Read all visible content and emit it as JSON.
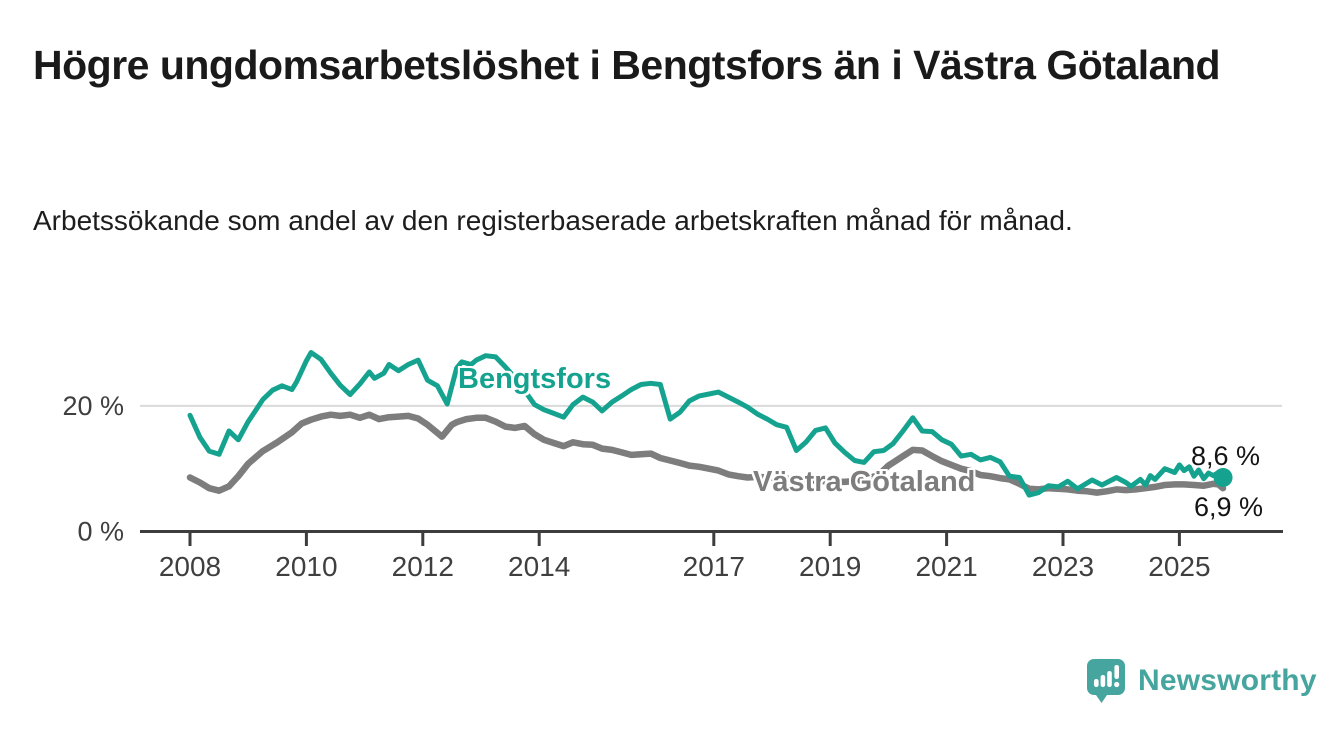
{
  "header": {
    "title": "Högre ungdomsarbetslöshet i Bengtsfors än i Västra Götaland",
    "subtitle": "Arbetssökande som andel av den registerbaserade arbetskraften månad för månad."
  },
  "chart_data": {
    "type": "line",
    "unit": "%",
    "x_range": [
      2008.0,
      2025.75
    ],
    "y_axis": {
      "ticks": [
        {
          "value": 20,
          "label": "20 %"
        },
        {
          "value": 0,
          "label": "0 %"
        }
      ],
      "gridline_at": 20
    },
    "x_ticks": [
      {
        "value": 2008,
        "label": "2008"
      },
      {
        "value": 2010,
        "label": "2010"
      },
      {
        "value": 2012,
        "label": "2012"
      },
      {
        "value": 2014,
        "label": "2014"
      },
      {
        "value": 2017,
        "label": "2017"
      },
      {
        "value": 2019,
        "label": "2019"
      },
      {
        "value": 2021,
        "label": "2021"
      },
      {
        "value": 2023,
        "label": "2023"
      },
      {
        "value": 2025,
        "label": "2025"
      }
    ],
    "legend_position": "inline-labels-on-lines",
    "series": [
      {
        "name": "Bengtsfors",
        "color": "#15A390",
        "end_dot": true,
        "latest_value_label": "8,6 %",
        "points": [
          [
            2008.0,
            18.5
          ],
          [
            2008.17,
            15.0
          ],
          [
            2008.33,
            12.8
          ],
          [
            2008.5,
            12.3
          ],
          [
            2008.67,
            16.0
          ],
          [
            2008.83,
            14.6
          ],
          [
            2009.0,
            17.5
          ],
          [
            2009.25,
            21.0
          ],
          [
            2009.42,
            22.5
          ],
          [
            2009.58,
            23.2
          ],
          [
            2009.75,
            22.6
          ],
          [
            2009.83,
            23.8
          ],
          [
            2010.0,
            27.2
          ],
          [
            2010.08,
            28.5
          ],
          [
            2010.25,
            27.4
          ],
          [
            2010.42,
            25.2
          ],
          [
            2010.58,
            23.3
          ],
          [
            2010.75,
            21.8
          ],
          [
            2010.92,
            23.5
          ],
          [
            2011.08,
            25.4
          ],
          [
            2011.17,
            24.4
          ],
          [
            2011.33,
            25.2
          ],
          [
            2011.42,
            26.6
          ],
          [
            2011.58,
            25.6
          ],
          [
            2011.75,
            26.6
          ],
          [
            2011.92,
            27.3
          ],
          [
            2012.08,
            24.1
          ],
          [
            2012.25,
            23.2
          ],
          [
            2012.42,
            20.3
          ],
          [
            2012.58,
            26.0
          ],
          [
            2012.67,
            27.0
          ],
          [
            2012.83,
            26.6
          ],
          [
            2012.92,
            27.3
          ],
          [
            2013.08,
            28.0
          ],
          [
            2013.25,
            27.8
          ],
          [
            2013.42,
            26.2
          ],
          [
            2013.58,
            24.5
          ],
          [
            2013.75,
            22.4
          ],
          [
            2013.92,
            20.2
          ],
          [
            2014.08,
            19.4
          ],
          [
            2014.25,
            18.8
          ],
          [
            2014.42,
            18.2
          ],
          [
            2014.58,
            20.2
          ],
          [
            2014.75,
            21.4
          ],
          [
            2014.92,
            20.6
          ],
          [
            2015.08,
            19.2
          ],
          [
            2015.25,
            20.6
          ],
          [
            2015.42,
            21.6
          ],
          [
            2015.58,
            22.6
          ],
          [
            2015.75,
            23.4
          ],
          [
            2015.92,
            23.6
          ],
          [
            2016.08,
            23.4
          ],
          [
            2016.25,
            17.9
          ],
          [
            2016.42,
            19.0
          ],
          [
            2016.58,
            20.8
          ],
          [
            2016.75,
            21.6
          ],
          [
            2016.92,
            21.9
          ],
          [
            2017.08,
            22.2
          ],
          [
            2017.25,
            21.4
          ],
          [
            2017.42,
            20.6
          ],
          [
            2017.58,
            19.8
          ],
          [
            2017.75,
            18.7
          ],
          [
            2017.92,
            17.9
          ],
          [
            2018.08,
            17.0
          ],
          [
            2018.25,
            16.6
          ],
          [
            2018.42,
            12.9
          ],
          [
            2018.58,
            14.2
          ],
          [
            2018.75,
            16.1
          ],
          [
            2018.92,
            16.5
          ],
          [
            2019.08,
            14.1
          ],
          [
            2019.25,
            12.6
          ],
          [
            2019.42,
            11.3
          ],
          [
            2019.58,
            11.0
          ],
          [
            2019.75,
            12.7
          ],
          [
            2019.92,
            12.9
          ],
          [
            2020.08,
            14.0
          ],
          [
            2020.25,
            16.0
          ],
          [
            2020.42,
            18.1
          ],
          [
            2020.58,
            16.0
          ],
          [
            2020.75,
            15.9
          ],
          [
            2020.92,
            14.6
          ],
          [
            2021.08,
            13.9
          ],
          [
            2021.25,
            12.0
          ],
          [
            2021.42,
            12.3
          ],
          [
            2021.58,
            11.4
          ],
          [
            2021.75,
            11.8
          ],
          [
            2021.92,
            11.1
          ],
          [
            2022.08,
            8.8
          ],
          [
            2022.25,
            8.6
          ],
          [
            2022.42,
            5.8
          ],
          [
            2022.58,
            6.2
          ],
          [
            2022.75,
            7.3
          ],
          [
            2022.92,
            7.1
          ],
          [
            2023.08,
            8.0
          ],
          [
            2023.25,
            6.8
          ],
          [
            2023.5,
            8.2
          ],
          [
            2023.67,
            7.4
          ],
          [
            2023.92,
            8.6
          ],
          [
            2024.08,
            7.8
          ],
          [
            2024.17,
            7.2
          ],
          [
            2024.33,
            8.3
          ],
          [
            2024.42,
            7.4
          ],
          [
            2024.5,
            8.9
          ],
          [
            2024.58,
            8.3
          ],
          [
            2024.75,
            10.0
          ],
          [
            2024.92,
            9.4
          ],
          [
            2025.0,
            10.6
          ],
          [
            2025.08,
            9.7
          ],
          [
            2025.17,
            10.3
          ],
          [
            2025.25,
            8.8
          ],
          [
            2025.33,
            9.8
          ],
          [
            2025.42,
            8.4
          ],
          [
            2025.5,
            9.3
          ],
          [
            2025.58,
            8.9
          ],
          [
            2025.67,
            9.4
          ],
          [
            2025.75,
            8.6
          ]
        ]
      },
      {
        "name": "Västra Götaland",
        "color": "#7D7D7D",
        "end_dot": false,
        "latest_value_label": "6,9 %",
        "points": [
          [
            2008.0,
            8.6
          ],
          [
            2008.17,
            7.8
          ],
          [
            2008.33,
            6.9
          ],
          [
            2008.5,
            6.5
          ],
          [
            2008.67,
            7.2
          ],
          [
            2008.83,
            8.8
          ],
          [
            2009.0,
            10.8
          ],
          [
            2009.25,
            12.8
          ],
          [
            2009.5,
            14.2
          ],
          [
            2009.75,
            15.8
          ],
          [
            2009.92,
            17.2
          ],
          [
            2010.08,
            17.8
          ],
          [
            2010.25,
            18.3
          ],
          [
            2010.42,
            18.6
          ],
          [
            2010.58,
            18.4
          ],
          [
            2010.75,
            18.6
          ],
          [
            2010.92,
            18.1
          ],
          [
            2011.08,
            18.6
          ],
          [
            2011.25,
            17.9
          ],
          [
            2011.42,
            18.2
          ],
          [
            2011.58,
            18.3
          ],
          [
            2011.75,
            18.4
          ],
          [
            2011.92,
            18.0
          ],
          [
            2012.08,
            17.0
          ],
          [
            2012.25,
            15.7
          ],
          [
            2012.33,
            15.1
          ],
          [
            2012.5,
            17.0
          ],
          [
            2012.58,
            17.4
          ],
          [
            2012.75,
            17.9
          ],
          [
            2012.92,
            18.1
          ],
          [
            2013.08,
            18.1
          ],
          [
            2013.25,
            17.5
          ],
          [
            2013.42,
            16.7
          ],
          [
            2013.58,
            16.5
          ],
          [
            2013.75,
            16.8
          ],
          [
            2013.92,
            15.5
          ],
          [
            2014.08,
            14.6
          ],
          [
            2014.25,
            14.1
          ],
          [
            2014.42,
            13.6
          ],
          [
            2014.58,
            14.2
          ],
          [
            2014.75,
            13.9
          ],
          [
            2014.92,
            13.8
          ],
          [
            2015.08,
            13.2
          ],
          [
            2015.25,
            13.0
          ],
          [
            2015.42,
            12.6
          ],
          [
            2015.58,
            12.2
          ],
          [
            2015.75,
            12.3
          ],
          [
            2015.92,
            12.4
          ],
          [
            2016.08,
            11.7
          ],
          [
            2016.25,
            11.3
          ],
          [
            2016.42,
            10.9
          ],
          [
            2016.58,
            10.5
          ],
          [
            2016.75,
            10.3
          ],
          [
            2016.92,
            10.0
          ],
          [
            2017.08,
            9.7
          ],
          [
            2017.25,
            9.1
          ],
          [
            2017.42,
            8.8
          ],
          [
            2017.58,
            8.6
          ],
          [
            2017.75,
            8.7
          ],
          [
            2017.92,
            8.6
          ],
          [
            2018.25,
            8.4
          ],
          [
            2018.58,
            8.2
          ],
          [
            2018.92,
            8.0
          ],
          [
            2019.25,
            7.9
          ],
          [
            2019.58,
            8.2
          ],
          [
            2019.83,
            9.0
          ],
          [
            2020.0,
            10.5
          ],
          [
            2020.25,
            12.0
          ],
          [
            2020.42,
            13.0
          ],
          [
            2020.58,
            12.9
          ],
          [
            2020.75,
            12.0
          ],
          [
            2020.92,
            11.2
          ],
          [
            2021.08,
            10.6
          ],
          [
            2021.25,
            10.0
          ],
          [
            2021.42,
            9.6
          ],
          [
            2021.58,
            9.0
          ],
          [
            2021.75,
            8.8
          ],
          [
            2021.92,
            8.5
          ],
          [
            2022.08,
            8.3
          ],
          [
            2022.25,
            7.6
          ],
          [
            2022.42,
            6.8
          ],
          [
            2022.58,
            6.7
          ],
          [
            2022.75,
            6.9
          ],
          [
            2022.92,
            6.8
          ],
          [
            2023.08,
            6.7
          ],
          [
            2023.25,
            6.5
          ],
          [
            2023.42,
            6.4
          ],
          [
            2023.58,
            6.2
          ],
          [
            2023.75,
            6.4
          ],
          [
            2023.92,
            6.7
          ],
          [
            2024.08,
            6.6
          ],
          [
            2024.25,
            6.7
          ],
          [
            2024.42,
            6.9
          ],
          [
            2024.58,
            7.1
          ],
          [
            2024.75,
            7.4
          ],
          [
            2024.92,
            7.5
          ],
          [
            2025.08,
            7.5
          ],
          [
            2025.25,
            7.4
          ],
          [
            2025.42,
            7.3
          ],
          [
            2025.58,
            7.6
          ],
          [
            2025.67,
            7.5
          ],
          [
            2025.75,
            6.9
          ]
        ]
      }
    ],
    "annotations": {
      "end_value_bengtsfors": "8,6 %",
      "end_value_vastra": "6,9 %"
    }
  },
  "footer": {
    "brand": "Newsworthy",
    "logo_icon": "speech-bubble-bar-chart-icon",
    "brand_color": "#47A59F"
  }
}
